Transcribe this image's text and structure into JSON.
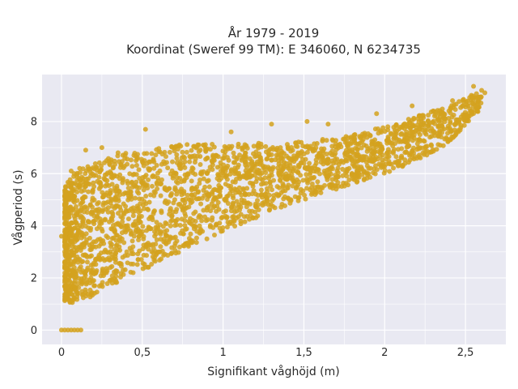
{
  "chart_data": {
    "type": "scatter",
    "title_lines": [
      "År 1979 - 2019",
      "Koordinat (Sweref 99 TM): E 346060, N 6234735"
    ],
    "xlabel": "Signifikant våghöjd (m)",
    "ylabel": "Vågperiod (s)",
    "xlim": [
      -0.12,
      2.75
    ],
    "ylim": [
      -0.55,
      9.8
    ],
    "x_ticks": [
      0,
      0.5,
      1,
      1.5,
      2,
      2.5
    ],
    "x_tick_labels": [
      "0",
      "0,5",
      "1",
      "1,5",
      "2",
      "2,5"
    ],
    "y_ticks": [
      0,
      2,
      4,
      6,
      8
    ],
    "y_tick_labels": [
      "0",
      "2",
      "4",
      "6",
      "8"
    ],
    "grid": true,
    "marker_color": "#D4A21E",
    "background_color": "#E9E9F2",
    "series": [
      {
        "points_description_dense_band": [
          [
            0.02,
            1.1,
            5.5
          ],
          [
            0.1,
            1.0,
            6.2
          ],
          [
            0.2,
            1.3,
            6.4
          ],
          [
            0.3,
            1.7,
            6.6
          ],
          [
            0.4,
            2.0,
            6.8
          ],
          [
            0.5,
            2.2,
            6.9
          ],
          [
            0.6,
            2.6,
            7.0
          ],
          [
            0.8,
            3.2,
            7.2
          ],
          [
            1.0,
            3.8,
            7.1
          ],
          [
            1.2,
            4.3,
            7.2
          ],
          [
            1.4,
            4.8,
            7.2
          ],
          [
            1.6,
            5.2,
            7.3
          ],
          [
            1.8,
            5.6,
            7.5
          ],
          [
            2.0,
            6.0,
            7.8
          ],
          [
            2.2,
            6.5,
            8.2
          ],
          [
            2.4,
            7.2,
            8.6
          ],
          [
            2.6,
            8.5,
            9.2
          ]
        ],
        "zero_period_points": [
          [
            0.0,
            0
          ],
          [
            0.02,
            0
          ],
          [
            0.04,
            0
          ],
          [
            0.06,
            0
          ],
          [
            0.08,
            0
          ],
          [
            0.1,
            0
          ],
          [
            0.12,
            0
          ]
        ],
        "outliers": [
          [
            0.52,
            7.7
          ],
          [
            0.15,
            6.9
          ],
          [
            0.25,
            7.0
          ],
          [
            0.35,
            6.8
          ],
          [
            1.3,
            7.9
          ],
          [
            1.52,
            8.0
          ],
          [
            1.65,
            7.9
          ],
          [
            1.95,
            8.3
          ],
          [
            2.17,
            8.6
          ],
          [
            2.3,
            8.4
          ],
          [
            2.42,
            8.8
          ],
          [
            2.55,
            9.35
          ],
          [
            2.62,
            9.1
          ],
          [
            0.06,
            6.1
          ],
          [
            0.0,
            3.6
          ],
          [
            0.02,
            3.2
          ],
          [
            0.85,
            7.1
          ],
          [
            1.05,
            7.6
          ],
          [
            1.42,
            5.0
          ],
          [
            0.9,
            3.5
          ]
        ]
      }
    ]
  }
}
